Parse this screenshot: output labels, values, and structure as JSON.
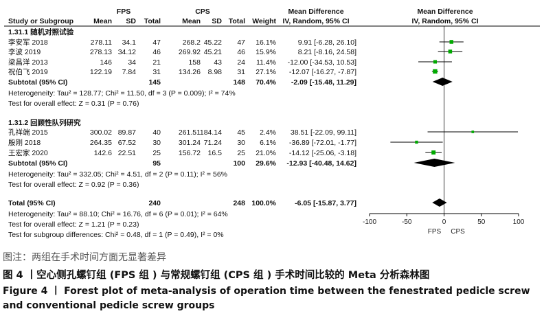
{
  "chart_data": {
    "type": "forest",
    "header": {
      "group1": "FPS",
      "group2": "CPS",
      "columns": [
        "Study or Subgroup",
        "Mean",
        "SD",
        "Total",
        "Mean",
        "SD",
        "Total",
        "Weight"
      ],
      "md_title": "Mean Difference",
      "md_sub": "IV, Random, 95% CI",
      "plot_title": "Mean Difference",
      "plot_sub": "IV, Random, 95% CI"
    },
    "subgroups": [
      {
        "title": "1.31.1 随机对照试验",
        "studies": [
          {
            "name": "李安军 2018",
            "m1": "278.11",
            "sd1": "34.1",
            "n1": "47",
            "m2": "268.2",
            "sd2": "45.22",
            "n2": "47",
            "weight": "16.1%",
            "ci_text": "9.91 [-6.28, 26.10]",
            "md": 9.91,
            "lo": -6.28,
            "hi": 26.1
          },
          {
            "name": "李波 2019",
            "m1": "278.13",
            "sd1": "34.12",
            "n1": "46",
            "m2": "269.92",
            "sd2": "45.21",
            "n2": "46",
            "weight": "15.9%",
            "ci_text": "8.21 [-8.16, 24.58]",
            "md": 8.21,
            "lo": -8.16,
            "hi": 24.58
          },
          {
            "name": "梁昌洋 2013",
            "m1": "146",
            "sd1": "34",
            "n1": "21",
            "m2": "158",
            "sd2": "43",
            "n2": "24",
            "weight": "11.4%",
            "ci_text": "-12.00 [-34.53, 10.53]",
            "md": -12.0,
            "lo": -34.53,
            "hi": 10.53
          },
          {
            "name": "祝伯飞 2019",
            "m1": "122.19",
            "sd1": "7.84",
            "n1": "31",
            "m2": "134.26",
            "sd2": "8.98",
            "n2": "31",
            "weight": "27.1%",
            "ci_text": "-12.07 [-16.27, -7.87]",
            "md": -12.07,
            "lo": -16.27,
            "hi": -7.87
          }
        ],
        "subtotal": {
          "label": "Subtotal (95% CI)",
          "n1": "145",
          "n2": "148",
          "weight": "70.4%",
          "ci_text": "-2.09 [-15.48, 11.29]",
          "md": -2.09,
          "lo": -15.48,
          "hi": 11.29
        },
        "heterogeneity": "Heterogeneity: Tau² = 128.77; Chi² = 11.50, df = 3 (P = 0.009); I² = 74%",
        "overall": "Test for overall effect: Z = 0.31 (P = 0.76)"
      },
      {
        "title": "1.31.2 回顾性队列研究",
        "studies": [
          {
            "name": "孔祥端 2015",
            "m1": "300.02",
            "sd1": "89.87",
            "n1": "40",
            "m2": "261.51",
            "sd2": "184.14",
            "n2": "45",
            "weight": "2.4%",
            "ci_text": "38.51 [-22.09, 99.11]",
            "md": 38.51,
            "lo": -22.09,
            "hi": 99.11
          },
          {
            "name": "殷刚 2018",
            "m1": "264.35",
            "sd1": "67.52",
            "n1": "30",
            "m2": "301.24",
            "sd2": "71.24",
            "n2": "30",
            "weight": "6.1%",
            "ci_text": "-36.89 [-72.01, -1.77]",
            "md": -36.89,
            "lo": -72.01,
            "hi": -1.77
          },
          {
            "name": "王宏家 2020",
            "m1": "142.6",
            "sd1": "22.51",
            "n1": "25",
            "m2": "156.72",
            "sd2": "16.5",
            "n2": "25",
            "weight": "21.0%",
            "ci_text": "-14.12 [-25.06, -3.18]",
            "md": -14.12,
            "lo": -25.06,
            "hi": -3.18
          }
        ],
        "subtotal": {
          "label": "Subtotal (95% CI)",
          "n1": "95",
          "n2": "100",
          "weight": "29.6%",
          "ci_text": "-12.93 [-40.48, 14.62]",
          "md": -12.93,
          "lo": -40.48,
          "hi": 14.62
        },
        "heterogeneity": "Heterogeneity: Tau² = 332.05; Chi² = 4.51, df = 2 (P = 0.11); I² = 56%",
        "overall": "Test for overall effect: Z = 0.92 (P = 0.36)"
      }
    ],
    "total": {
      "label": "Total (95% CI)",
      "n1": "240",
      "n2": "248",
      "weight": "100.0%",
      "ci_text": "-6.05 [-15.87, 3.77]",
      "md": -6.05,
      "lo": -15.87,
      "hi": 3.77
    },
    "total_heterogeneity": "Heterogeneity: Tau² = 88.10; Chi² = 16.76, df = 6 (P = 0.01); I² = 64%",
    "total_overall": "Test for overall effect: Z = 1.21 (P = 0.23)",
    "subgroup_diff": "Test for subgroup differences: Chi² = 0.48, df = 1 (P = 0.49), I² = 0%",
    "xlim": [
      -100,
      100
    ],
    "xticks": [
      -100,
      -50,
      0,
      50,
      100
    ],
    "xlabels": [
      "FPS",
      "CPS"
    ],
    "colors": {
      "marker": "#00aa00",
      "diamond": "#000000",
      "line": "#000000"
    }
  },
  "caption": {
    "note": "图注：两组在手术时间方面无显著差异",
    "cn": "图 4 丨空心侧孔螺钉组 (FPS 组 ) 与常规螺钉组 (CPS 组 ) 手术时间比较的 Meta 分析森林图",
    "en": "Figure 4 丨 Forest plot of meta-analysis of operation time between the fenestrated pedicle screw and conventional pedicle screw groups"
  }
}
